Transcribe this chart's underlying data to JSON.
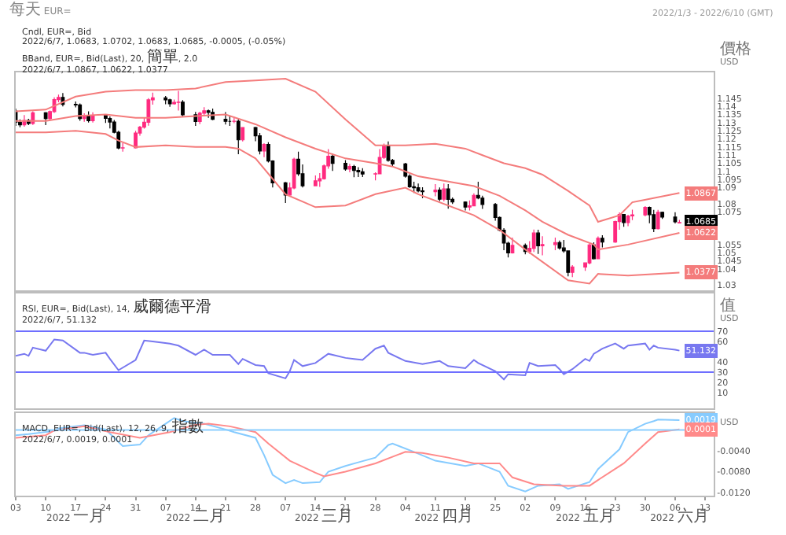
{
  "chart_data": [
    {
      "type": "candlestick",
      "title": "每天 EUR=",
      "subtitle": "2022/1/3 - 2022/6/10 (GMT)",
      "ylabel": "價格 USD",
      "tick_labels": "y",
      "xlim": [
        "2022-01-03",
        "2022-06-15"
      ],
      "ylim": [
        1.027,
        1.161
      ],
      "yticks": [
        1.03,
        1.04,
        1.045,
        1.05,
        1.055,
        1.075,
        1.08,
        1.09,
        1.095,
        1.1,
        1.105,
        1.11,
        1.115,
        1.12,
        1.125,
        1.13,
        1.135,
        1.14,
        1.145
      ],
      "x": [
        "2022-01-03",
        "2022-01-04",
        "2022-01-05",
        "2022-01-06",
        "2022-01-07",
        "2022-01-10",
        "2022-01-11",
        "2022-01-12",
        "2022-01-13",
        "2022-01-14",
        "2022-01-17",
        "2022-01-18",
        "2022-01-19",
        "2022-01-20",
        "2022-01-21",
        "2022-01-24",
        "2022-01-25",
        "2022-01-26",
        "2022-01-27",
        "2022-01-28",
        "2022-01-31",
        "2022-02-01",
        "2022-02-02",
        "2022-02-03",
        "2022-02-04",
        "2022-02-07",
        "2022-02-08",
        "2022-02-09",
        "2022-02-10",
        "2022-02-11",
        "2022-02-14",
        "2022-02-15",
        "2022-02-16",
        "2022-02-17",
        "2022-02-18",
        "2022-02-21",
        "2022-02-22",
        "2022-02-23",
        "2022-02-24",
        "2022-02-25",
        "2022-02-28",
        "2022-03-01",
        "2022-03-02",
        "2022-03-03",
        "2022-03-04",
        "2022-03-07",
        "2022-03-08",
        "2022-03-09",
        "2022-03-10",
        "2022-03-11",
        "2022-03-14",
        "2022-03-15",
        "2022-03-16",
        "2022-03-17",
        "2022-03-18",
        "2022-03-21",
        "2022-03-22",
        "2022-03-23",
        "2022-03-24",
        "2022-03-25",
        "2022-03-28",
        "2022-03-29",
        "2022-03-30",
        "2022-03-31",
        "2022-04-01",
        "2022-04-04",
        "2022-04-05",
        "2022-04-06",
        "2022-04-07",
        "2022-04-08",
        "2022-04-11",
        "2022-04-12",
        "2022-04-13",
        "2022-04-14",
        "2022-04-15",
        "2022-04-18",
        "2022-04-19",
        "2022-04-20",
        "2022-04-21",
        "2022-04-22",
        "2022-04-25",
        "2022-04-26",
        "2022-04-27",
        "2022-04-28",
        "2022-04-29",
        "2022-05-02",
        "2022-05-03",
        "2022-05-04",
        "2022-05-05",
        "2022-05-06",
        "2022-05-09",
        "2022-05-10",
        "2022-05-11",
        "2022-05-12",
        "2022-05-13",
        "2022-05-16",
        "2022-05-17",
        "2022-05-18",
        "2022-05-19",
        "2022-05-20",
        "2022-05-23",
        "2022-05-24",
        "2022-05-25",
        "2022-05-26",
        "2022-05-27",
        "2022-05-30",
        "2022-05-31",
        "2022-06-01",
        "2022-06-02",
        "2022-06-03",
        "2022-06-06",
        "2022-06-07"
      ],
      "ohlc": [
        [
          1.137,
          1.1386,
          1.128,
          1.1303
        ],
        [
          1.1303,
          1.132,
          1.1272,
          1.1287
        ],
        [
          1.1287,
          1.1346,
          1.1275,
          1.1313
        ],
        [
          1.1313,
          1.1324,
          1.1285,
          1.1295
        ],
        [
          1.1295,
          1.1369,
          1.1286,
          1.136
        ],
        [
          1.136,
          1.1365,
          1.1285,
          1.1325
        ],
        [
          1.1325,
          1.1374,
          1.1313,
          1.1368
        ],
        [
          1.1368,
          1.1455,
          1.136,
          1.1442
        ],
        [
          1.1442,
          1.1472,
          1.1425,
          1.1455
        ],
        [
          1.1455,
          1.1482,
          1.14,
          1.1413
        ],
        [
          1.1413,
          1.143,
          1.1394,
          1.1409
        ],
        [
          1.1409,
          1.1418,
          1.1311,
          1.1325
        ],
        [
          1.1325,
          1.1357,
          1.1306,
          1.1345
        ],
        [
          1.1345,
          1.1369,
          1.13,
          1.1312
        ],
        [
          1.1312,
          1.1364,
          1.1301,
          1.1345
        ],
        [
          1.1345,
          1.1353,
          1.1298,
          1.1326
        ],
        [
          1.1326,
          1.1338,
          1.1264,
          1.1304
        ],
        [
          1.1304,
          1.1316,
          1.1234,
          1.1241
        ],
        [
          1.1241,
          1.125,
          1.1136,
          1.1144
        ],
        [
          1.1144,
          1.1175,
          1.1121,
          1.1145
        ],
        [
          1.1145,
          1.125,
          1.1141,
          1.1236
        ],
        [
          1.1236,
          1.128,
          1.1219,
          1.1272
        ],
        [
          1.1272,
          1.1331,
          1.1263,
          1.1302
        ],
        [
          1.1302,
          1.145,
          1.1281,
          1.144
        ],
        [
          1.144,
          1.1484,
          1.1411,
          1.1453
        ],
        [
          1.1453,
          1.1464,
          1.1413,
          1.144
        ],
        [
          1.144,
          1.1447,
          1.1398,
          1.1416
        ],
        [
          1.1416,
          1.1442,
          1.1411,
          1.1425
        ],
        [
          1.1425,
          1.1495,
          1.1374,
          1.1426
        ],
        [
          1.1426,
          1.1438,
          1.1339,
          1.1348
        ],
        [
          1.1348,
          1.1366,
          1.128,
          1.1307
        ],
        [
          1.1307,
          1.1367,
          1.1291,
          1.1358
        ],
        [
          1.1358,
          1.1395,
          1.1339,
          1.1373
        ],
        [
          1.1373,
          1.138,
          1.133,
          1.1363
        ],
        [
          1.1363,
          1.1386,
          1.1315,
          1.1321
        ],
        [
          1.1321,
          1.1365,
          1.1289,
          1.1308
        ],
        [
          1.1308,
          1.1343,
          1.128,
          1.1308
        ],
        [
          1.1308,
          1.1336,
          1.1297,
          1.1309
        ],
        [
          1.1309,
          1.1324,
          1.1106,
          1.1194
        ],
        [
          1.1194,
          1.1273,
          1.1184,
          1.127
        ],
        [
          1.127,
          1.1274,
          1.1186,
          1.1219
        ],
        [
          1.1219,
          1.1237,
          1.1104,
          1.1126
        ],
        [
          1.1126,
          1.1174,
          1.1088,
          1.1166
        ],
        [
          1.1166,
          1.118,
          1.1055,
          1.1064
        ],
        [
          1.1064,
          1.1068,
          1.0901,
          1.093
        ],
        [
          1.093,
          1.0935,
          1.0806,
          1.0855
        ],
        [
          1.0855,
          1.0932,
          1.085,
          1.0898
        ],
        [
          1.0898,
          1.1084,
          1.089,
          1.1075
        ],
        [
          1.1075,
          1.1121,
          1.0973,
          1.0985
        ],
        [
          1.0985,
          1.1043,
          1.0902,
          1.0912
        ],
        [
          1.0912,
          1.0975,
          1.0909,
          1.0942
        ],
        [
          1.0942,
          1.099,
          1.0905,
          1.0955
        ],
        [
          1.0955,
          1.1043,
          1.095,
          1.1034
        ],
        [
          1.1034,
          1.1137,
          1.1016,
          1.1093
        ],
        [
          1.1093,
          1.111,
          1.1003,
          1.105
        ],
        [
          1.105,
          1.1069,
          1.1004,
          1.1014
        ],
        [
          1.1014,
          1.1046,
          1.0995,
          1.103
        ],
        [
          1.103,
          1.1041,
          1.0964,
          1.1006
        ],
        [
          1.1006,
          1.1026,
          1.0966,
          1.0998
        ],
        [
          1.0998,
          1.102,
          1.0965,
          1.0984
        ],
        [
          1.0984,
          1.0995,
          1.0945,
          1.0985
        ],
        [
          1.0985,
          1.1137,
          1.0983,
          1.1086
        ],
        [
          1.1086,
          1.1171,
          1.1077,
          1.1157
        ],
        [
          1.1157,
          1.1185,
          1.106,
          1.1068
        ],
        [
          1.1068,
          1.1077,
          1.1028,
          1.1046
        ],
        [
          1.1046,
          1.1053,
          1.0962,
          1.0971
        ],
        [
          1.0971,
          1.0983,
          1.0899,
          1.0906
        ],
        [
          1.0906,
          1.0937,
          1.0868,
          1.09
        ],
        [
          1.09,
          1.0925,
          1.0871,
          1.088
        ],
        [
          1.088,
          1.0903,
          1.0836,
          1.0875
        ],
        [
          1.0875,
          1.0922,
          1.0847,
          1.0885
        ],
        [
          1.0885,
          1.0902,
          1.0818,
          1.0829
        ],
        [
          1.0829,
          1.0925,
          1.0816,
          1.0892
        ],
        [
          1.0892,
          1.0922,
          1.0771,
          1.0828
        ],
        [
          1.0828,
          1.084,
          1.08,
          1.0812
        ],
        [
          1.0812,
          1.0816,
          1.076,
          1.0781
        ],
        [
          1.0781,
          1.0822,
          1.076,
          1.0788
        ],
        [
          1.0788,
          1.0865,
          1.0787,
          1.0853
        ],
        [
          1.0853,
          1.0937,
          1.0829,
          1.0836
        ],
        [
          1.0836,
          1.085,
          1.0769,
          1.0797
        ],
        [
          1.0797,
          1.0806,
          1.0697,
          1.0717
        ],
        [
          1.0717,
          1.0722,
          1.0632,
          1.0638
        ],
        [
          1.0638,
          1.0651,
          1.0516,
          1.0559
        ],
        [
          1.0559,
          1.0568,
          1.0471,
          1.0499
        ],
        [
          1.0499,
          1.0593,
          1.0495,
          1.0545
        ],
        [
          1.0545,
          1.0557,
          1.049,
          1.0508
        ],
        [
          1.0508,
          1.0571,
          1.0494,
          1.0527
        ],
        [
          1.0527,
          1.0642,
          1.0504,
          1.0621
        ],
        [
          1.0621,
          1.0641,
          1.0493,
          1.0543
        ],
        [
          1.0543,
          1.0601,
          1.0484,
          1.055
        ],
        [
          1.055,
          1.0593,
          1.0516,
          1.0562
        ],
        [
          1.0562,
          1.0575,
          1.0519,
          1.0529
        ],
        [
          1.0529,
          1.0578,
          1.05,
          1.0511
        ],
        [
          1.0511,
          1.0513,
          1.0354,
          1.0379
        ],
        [
          1.0379,
          1.0424,
          1.035,
          1.0412
        ],
        [
          1.0412,
          1.0441,
          1.0389,
          1.0437
        ],
        [
          1.0437,
          1.0558,
          1.0428,
          1.0548
        ],
        [
          1.0548,
          1.0564,
          1.0459,
          1.0463
        ],
        [
          1.0463,
          1.06,
          1.0461,
          1.0589
        ],
        [
          1.0589,
          1.0608,
          1.0532,
          1.0565
        ],
        [
          1.0565,
          1.0697,
          1.056,
          1.0692
        ],
        [
          1.0692,
          1.0748,
          1.0641,
          1.0735
        ],
        [
          1.0735,
          1.0738,
          1.066,
          1.0685
        ],
        [
          1.0685,
          1.0733,
          1.0663,
          1.0726
        ],
        [
          1.0726,
          1.0765,
          1.07,
          1.0733
        ],
        [
          1.0733,
          1.0787,
          1.0723,
          1.0779
        ],
        [
          1.0779,
          1.0784,
          1.0681,
          1.0734
        ],
        [
          1.0734,
          1.0764,
          1.0627,
          1.0648
        ],
        [
          1.0648,
          1.0764,
          1.0643,
          1.0749
        ],
        [
          1.0749,
          1.0753,
          1.0708,
          1.0719
        ],
        [
          1.0719,
          1.0749,
          1.068,
          1.069
        ],
        [
          1.0683,
          1.0702,
          1.0683,
          1.0685
        ]
      ],
      "colors": [
        "#000000",
        "#000000",
        "#ff2a7f",
        "#000000",
        "#ff2a7f",
        "#000000",
        "#ff2a7f",
        "#ff2a7f",
        "#ff2a7f",
        "#000000",
        "#000000",
        "#000000",
        "#ff2a7f",
        "#000000",
        "#ff2a7f",
        "#000000",
        "#000000",
        "#000000",
        "#000000",
        "#ff2a7f",
        "#ff2a7f",
        "#ff2a7f",
        "#ff2a7f",
        "#ff2a7f",
        "#ff2a7f",
        "#000000",
        "#000000",
        "#ff2a7f",
        "#ff2a7f",
        "#000000",
        "#000000",
        "#ff2a7f",
        "#ff2a7f",
        "#000000",
        "#000000",
        "#000000",
        "#000000",
        "#ff2a7f",
        "#000000",
        "#ff2a7f",
        "#000000",
        "#000000",
        "#ff2a7f",
        "#000000",
        "#000000",
        "#000000",
        "#ff2a7f",
        "#ff2a7f",
        "#000000",
        "#000000",
        "#ff2a7f",
        "#ff2a7f",
        "#ff2a7f",
        "#ff2a7f",
        "#000000",
        "#000000",
        "#ff2a7f",
        "#000000",
        "#000000",
        "#000000",
        "#ff2a7f",
        "#ff2a7f",
        "#ff2a7f",
        "#000000",
        "#000000",
        "#000000",
        "#000000",
        "#000000",
        "#000000",
        "#000000",
        "#ff2a7f",
        "#000000",
        "#ff2a7f",
        "#000000",
        "#000000",
        "#000000",
        "#ff2a7f",
        "#ff2a7f",
        "#000000",
        "#000000",
        "#000000",
        "#000000",
        "#000000",
        "#000000",
        "#ff2a7f",
        "#000000",
        "#ff2a7f",
        "#ff2a7f",
        "#000000",
        "#ff2a7f",
        "#ff2a7f",
        "#000000",
        "#000000",
        "#000000",
        "#ff2a7f",
        "#ff2a7f",
        "#ff2a7f",
        "#000000",
        "#ff2a7f",
        "#000000",
        "#ff2a7f",
        "#ff2a7f",
        "#000000",
        "#ff2a7f",
        "#ff2a7f",
        "#ff2a7f",
        "#000000",
        "#000000",
        "#ff2a7f",
        "#000000",
        "#000000",
        "#ff2a7f"
      ],
      "series": [
        {
          "type": "line",
          "color": "#f47c7c",
          "x": [
            "2022-01-03",
            "2022-01-10",
            "2022-01-17",
            "2022-01-24",
            "2022-01-31",
            "2022-02-07",
            "2022-02-14",
            "2022-02-21",
            "2022-02-28",
            "2022-03-07",
            "2022-03-14",
            "2022-03-21",
            "2022-03-28",
            "2022-04-04",
            "2022-04-11",
            "2022-04-18",
            "2022-04-22",
            "2022-04-27",
            "2022-05-02",
            "2022-05-06",
            "2022-05-12",
            "2022-05-17",
            "2022-05-19",
            "2022-05-24",
            "2022-05-27",
            "2022-06-07"
          ],
          "values": [
            1.137,
            1.138,
            1.146,
            1.149,
            1.15,
            1.15,
            1.151,
            1.155,
            1.156,
            1.157,
            1.149,
            1.132,
            1.116,
            1.116,
            1.117,
            1.114,
            1.11,
            1.105,
            1.102,
            1.098,
            1.088,
            1.079,
            1.069,
            1.073,
            1.081,
            1.0867
          ]
        },
        {
          "type": "line",
          "color": "#f47c7c",
          "x": [
            "2022-01-03",
            "2022-01-10",
            "2022-01-17",
            "2022-01-24",
            "2022-01-31",
            "2022-02-07",
            "2022-02-14",
            "2022-02-21",
            "2022-02-28",
            "2022-03-07",
            "2022-03-14",
            "2022-03-21",
            "2022-03-28",
            "2022-04-01",
            "2022-04-07",
            "2022-04-20",
            "2022-04-26",
            "2022-05-02",
            "2022-05-06",
            "2022-05-12",
            "2022-05-18",
            "2022-05-19",
            "2022-05-26",
            "2022-06-07"
          ],
          "values": [
            1.131,
            1.131,
            1.134,
            1.135,
            1.133,
            1.133,
            1.134,
            1.135,
            1.129,
            1.121,
            1.114,
            1.108,
            1.105,
            1.103,
            1.097,
            1.091,
            1.085,
            1.076,
            1.069,
            1.061,
            1.055,
            1.052,
            1.055,
            1.0622
          ]
        },
        {
          "type": "line",
          "color": "#f47c7c",
          "x": [
            "2022-01-03",
            "2022-01-10",
            "2022-01-17",
            "2022-01-24",
            "2022-01-27",
            "2022-01-31",
            "2022-02-07",
            "2022-02-14",
            "2022-02-21",
            "2022-02-24",
            "2022-02-28",
            "2022-03-07",
            "2022-03-14",
            "2022-03-21",
            "2022-03-28",
            "2022-04-04",
            "2022-04-07",
            "2022-04-20",
            "2022-04-26",
            "2022-05-02",
            "2022-05-12",
            "2022-05-17",
            "2022-05-19",
            "2022-05-26",
            "2022-06-07"
          ],
          "values": [
            1.124,
            1.124,
            1.125,
            1.123,
            1.119,
            1.115,
            1.116,
            1.115,
            1.115,
            1.114,
            1.108,
            1.086,
            1.078,
            1.079,
            1.086,
            1.09,
            1.086,
            1.073,
            1.064,
            1.052,
            1.033,
            1.031,
            1.037,
            1.036,
            1.0377
          ]
        }
      ],
      "annotations": [
        "Cndl, EUR=, Bid",
        "2022/6/7, 1.0683, 1.0702, 1.0683, 1.0685, -0.0005, (-0.05%)",
        "BBand, EUR=, Bid(Last), 20, 簡單, 2.0",
        "2022/6/7, 1.0867, 1.0622, 1.0377",
        {
          "text": "1.0867",
          "x": "2022-06-07",
          "y": 1.0867
        },
        {
          "text": "1.0685",
          "x": "2022-06-07",
          "y": 1.0685
        },
        {
          "text": "1.0622",
          "x": "2022-06-07",
          "y": 1.0622
        },
        {
          "text": "1.0377",
          "x": "2022-06-07",
          "y": 1.0377
        }
      ]
    },
    {
      "type": "line",
      "ylabel": "值 USD",
      "tick_labels": "y",
      "xlim": [
        "2022-01-03",
        "2022-06-15"
      ],
      "ylim": [
        -5,
        107
      ],
      "yticks": [
        10,
        20,
        30,
        40,
        60,
        70
      ],
      "series": [
        {
          "color": "#7878f0",
          "x": [
            "2022-01-03",
            "2022-01-05",
            "2022-01-06",
            "2022-01-07",
            "2022-01-10",
            "2022-01-12",
            "2022-01-14",
            "2022-01-18",
            "2022-01-19",
            "2022-01-21",
            "2022-01-24",
            "2022-01-25",
            "2022-01-27",
            "2022-01-31",
            "2022-02-02",
            "2022-02-04",
            "2022-02-08",
            "2022-02-10",
            "2022-02-14",
            "2022-02-16",
            "2022-02-18",
            "2022-02-22",
            "2022-02-24",
            "2022-02-25",
            "2022-02-28",
            "2022-03-02",
            "2022-03-03",
            "2022-03-07",
            "2022-03-08",
            "2022-03-09",
            "2022-03-11",
            "2022-03-14",
            "2022-03-17",
            "2022-03-21",
            "2022-03-23",
            "2022-03-25",
            "2022-03-28",
            "2022-03-30",
            "2022-03-31",
            "2022-04-04",
            "2022-04-08",
            "2022-04-12",
            "2022-04-14",
            "2022-04-18",
            "2022-04-20",
            "2022-04-21",
            "2022-04-25",
            "2022-04-27",
            "2022-04-28",
            "2022-05-02",
            "2022-05-03",
            "2022-05-05",
            "2022-05-09",
            "2022-05-10",
            "2022-05-11",
            "2022-05-13",
            "2022-05-16",
            "2022-05-17",
            "2022-05-18",
            "2022-05-20",
            "2022-05-23",
            "2022-05-25",
            "2022-05-26",
            "2022-05-30",
            "2022-05-31",
            "2022-06-01",
            "2022-06-02",
            "2022-06-06",
            "2022-06-07"
          ],
          "values": [
            46,
            48,
            46,
            54,
            51,
            62,
            61,
            49,
            49,
            47,
            49,
            43,
            32,
            42,
            61,
            60,
            58,
            56,
            47,
            52,
            47,
            47,
            38,
            43,
            37,
            36,
            29,
            24,
            31,
            42,
            36,
            39,
            48,
            44,
            43,
            42,
            53,
            56,
            49,
            41,
            38,
            41,
            36,
            34,
            42,
            39,
            31,
            23,
            28,
            27,
            39,
            36,
            37,
            33,
            28,
            33,
            43,
            41,
            48,
            53,
            58,
            53,
            56,
            58,
            52,
            56,
            54,
            52,
            51.132
          ]
        }
      ],
      "ref_lines": [
        {
          "axis": "y",
          "value": 70,
          "color": "#6f6fff"
        },
        {
          "axis": "y",
          "value": 30,
          "color": "#6f6fff"
        }
      ],
      "annotations": [
        "RSI, EUR=, Bid(Last), 14, 威爾德平滑",
        "2022/6/7, 51.132",
        {
          "text": "51.132",
          "x": "2022-06-07",
          "y": 51.132
        }
      ]
    },
    {
      "type": "line",
      "ylabel": "USD",
      "xlim": [
        "2022-01-03",
        "2022-06-15"
      ],
      "ylim": [
        -0.0126,
        0.0033
      ],
      "yticks": [
        {
          "value": -0.012,
          "label": "-0.0120"
        },
        {
          "value": -0.008,
          "label": "-0.0080"
        },
        {
          "value": -0.004,
          "label": "-0.0040"
        }
      ],
      "xticks": [
        {
          "value": "2022-01-03",
          "label": "03"
        },
        {
          "value": "2022-01-10",
          "label": "10"
        },
        {
          "value": "2022-01-17",
          "label": "17"
        },
        {
          "value": "2022-01-24",
          "label": "24"
        },
        {
          "value": "2022-01-31",
          "label": "31"
        },
        {
          "value": "2022-02-07",
          "label": "07"
        },
        {
          "value": "2022-02-14",
          "label": "14"
        },
        {
          "value": "2022-02-21",
          "label": "21"
        },
        {
          "value": "2022-02-28",
          "label": "28"
        },
        {
          "value": "2022-03-07",
          "label": "07"
        },
        {
          "value": "2022-03-14",
          "label": "14"
        },
        {
          "value": "2022-03-21",
          "label": "21"
        },
        {
          "value": "2022-03-28",
          "label": "28"
        },
        {
          "value": "2022-04-04",
          "label": "04"
        },
        {
          "value": "2022-04-11",
          "label": "11"
        },
        {
          "value": "2022-04-18",
          "label": "18"
        },
        {
          "value": "2022-04-25",
          "label": "25"
        },
        {
          "value": "2022-05-02",
          "label": "02"
        },
        {
          "value": "2022-05-09",
          "label": "09"
        },
        {
          "value": "2022-05-16",
          "label": "16"
        },
        {
          "value": "2022-05-23",
          "label": "23"
        },
        {
          "value": "2022-05-30",
          "label": "30"
        },
        {
          "value": "2022-06-06",
          "label": "06"
        },
        {
          "value": "2022-06-13",
          "label": "13"
        }
      ],
      "x2lim": [
        "2022-01-03",
        "2022-06-15"
      ],
      "x2ticks": [
        {
          "value": "2022-01-17",
          "label": "2022 一月"
        },
        {
          "value": "2022-02-14",
          "label": "2022 二月"
        },
        {
          "value": "2022-03-16",
          "label": "2022 三月"
        },
        {
          "value": "2022-04-13",
          "label": "2022 四月"
        },
        {
          "value": "2022-05-16",
          "label": "2022 五月"
        },
        {
          "value": "2022-06-07",
          "label": "2022 六月"
        }
      ],
      "series": [
        {
          "color": "#86cbff",
          "x": [
            "2022-01-03",
            "2022-01-06",
            "2022-01-12",
            "2022-01-13",
            "2022-01-19",
            "2022-01-24",
            "2022-01-26",
            "2022-01-28",
            "2022-02-01",
            "2022-02-03",
            "2022-02-07",
            "2022-02-09",
            "2022-02-11",
            "2022-02-16",
            "2022-02-21",
            "2022-02-23",
            "2022-02-28",
            "2022-03-02",
            "2022-03-04",
            "2022-03-07",
            "2022-03-09",
            "2022-03-11",
            "2022-03-15",
            "2022-03-17",
            "2022-03-21",
            "2022-03-24",
            "2022-03-28",
            "2022-03-31",
            "2022-04-01",
            "2022-04-06",
            "2022-04-11",
            "2022-04-18",
            "2022-04-21",
            "2022-04-26",
            "2022-04-28",
            "2022-05-02",
            "2022-05-05",
            "2022-05-10",
            "2022-05-12",
            "2022-05-17",
            "2022-05-19",
            "2022-05-24",
            "2022-05-26",
            "2022-05-30",
            "2022-06-01",
            "2022-06-02",
            "2022-06-07"
          ],
          "values": [
            -0.001,
            -0.0008,
            -0.0002,
            0.0003,
            0.0009,
            0.0001,
            -0.0015,
            -0.0031,
            -0.0028,
            -0.001,
            0.0012,
            0.0023,
            0.0017,
            0.0012,
            0.0001,
            -0.0004,
            -0.0015,
            -0.0048,
            -0.0086,
            -0.0102,
            -0.0096,
            -0.0102,
            -0.01,
            -0.008,
            -0.0069,
            -0.0062,
            -0.0053,
            -0.0029,
            -0.0026,
            -0.0042,
            -0.0059,
            -0.0069,
            -0.0064,
            -0.008,
            -0.0107,
            -0.0118,
            -0.0107,
            -0.0104,
            -0.0113,
            -0.01,
            -0.0075,
            -0.0037,
            -0.0004,
            0.0012,
            0.0017,
            0.002,
            0.0019
          ]
        },
        {
          "color": "#ff8a8a",
          "x": [
            "2022-01-03",
            "2022-01-10",
            "2022-01-12",
            "2022-01-19",
            "2022-01-25",
            "2022-02-01",
            "2022-02-08",
            "2022-02-14",
            "2022-02-17",
            "2022-02-22",
            "2022-02-28",
            "2022-03-03",
            "2022-03-08",
            "2022-03-14",
            "2022-03-16",
            "2022-03-21",
            "2022-03-28",
            "2022-04-04",
            "2022-04-08",
            "2022-04-14",
            "2022-04-20",
            "2022-04-26",
            "2022-04-29",
            "2022-05-04",
            "2022-05-11",
            "2022-05-17",
            "2022-05-19",
            "2022-05-25",
            "2022-05-30",
            "2022-06-02",
            "2022-06-07"
          ],
          "values": [
            -0.0015,
            -0.001,
            -0.0001,
            0.0007,
            -0.0004,
            -0.0015,
            -0.0004,
            0.001,
            0.0012,
            0.0007,
            -0.0004,
            -0.0026,
            -0.0059,
            -0.0082,
            -0.0089,
            -0.008,
            -0.0064,
            -0.0042,
            -0.0044,
            -0.0053,
            -0.0064,
            -0.0064,
            -0.0091,
            -0.0104,
            -0.0107,
            -0.0107,
            -0.0096,
            -0.0064,
            -0.0026,
            -0.0004,
            0.0001
          ]
        }
      ],
      "ref_lines": [
        {
          "axis": "y",
          "value": 0,
          "color": "#8ccfff"
        }
      ],
      "annotations": [
        "MACD, EUR=, Bid(Last), 12, 26, 9, 指數",
        "2022/6/7, 0.0019, 0.0001",
        {
          "text": "0.0019",
          "x": "2022-06-07",
          "y": 0.0019
        },
        {
          "text": "0.0001",
          "x": "2022-06-07",
          "y": 0.0001
        }
      ]
    }
  ]
}
